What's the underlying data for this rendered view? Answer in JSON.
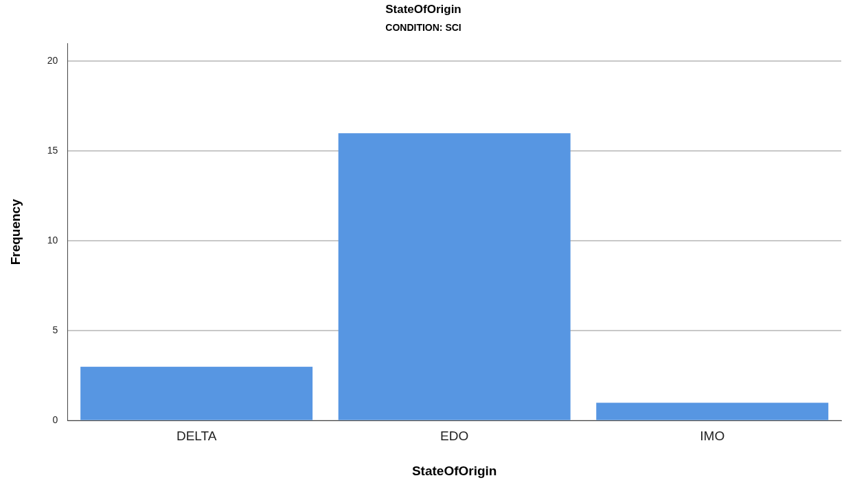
{
  "chart_data": {
    "type": "bar",
    "title": "StateOfOrigin",
    "subtitle": "CONDITION: SCI",
    "xlabel": "StateOfOrigin",
    "ylabel": "Frequency",
    "categories": [
      "DELTA",
      "EDO",
      "IMO"
    ],
    "values": [
      3,
      16,
      1
    ],
    "color": "#5796e2",
    "ylim": [
      0,
      21
    ],
    "yticks": [
      0,
      5,
      10,
      15,
      20
    ],
    "grid": "y",
    "legend": false
  }
}
